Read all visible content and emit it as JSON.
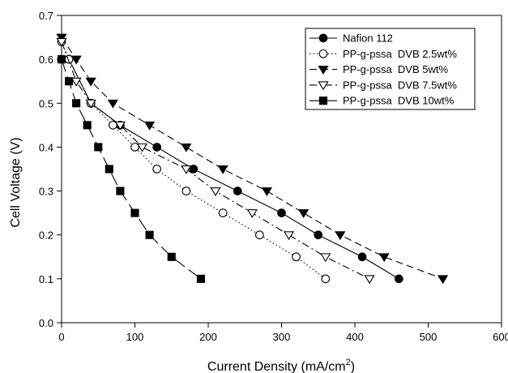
{
  "chart_data": {
    "type": "line",
    "xlabel": "Current Density (mA/cm",
    "xlabel_sup": "2",
    "xlabel_tail": ")",
    "ylabel": "Cell Voltage (V)",
    "xlim": [
      0,
      600
    ],
    "ylim": [
      0.0,
      0.7
    ],
    "x_ticks": [
      0,
      100,
      200,
      300,
      400,
      500,
      600
    ],
    "x_tick_labels": [
      "0",
      "100",
      "200",
      "300",
      "400",
      "500",
      "600"
    ],
    "y_ticks": [
      0.0,
      0.1,
      0.2,
      0.3,
      0.4,
      0.5,
      0.6,
      0.7
    ],
    "y_tick_labels": [
      "0.0",
      "0.1",
      "0.2",
      "0.3",
      "0.4",
      "0.5",
      "0.6",
      "0.7"
    ],
    "grid": false,
    "legend_position": "top-right",
    "series": [
      {
        "name": "Nafion 112",
        "marker": "circle-filled",
        "line_style": "solid",
        "color": "#000000",
        "x": [
          0,
          10,
          40,
          80,
          130,
          180,
          240,
          300,
          350,
          410,
          460
        ],
        "y": [
          0.6,
          0.6,
          0.5,
          0.45,
          0.4,
          0.35,
          0.3,
          0.25,
          0.2,
          0.15,
          0.1
        ]
      },
      {
        "name": "PP-g-pssa  DVB 2.5wt%",
        "marker": "circle-open",
        "line_style": "dotted",
        "color": "#000000",
        "x": [
          0,
          10,
          40,
          70,
          100,
          130,
          170,
          220,
          270,
          320,
          360
        ],
        "y": [
          0.64,
          0.6,
          0.5,
          0.45,
          0.4,
          0.35,
          0.3,
          0.25,
          0.2,
          0.15,
          0.1
        ]
      },
      {
        "name": "PP-g-pssa  DVB 5wt%",
        "marker": "triangle-down-filled",
        "line_style": "dashed",
        "color": "#000000",
        "x": [
          0,
          20,
          40,
          70,
          120,
          170,
          220,
          280,
          330,
          380,
          440,
          520
        ],
        "y": [
          0.65,
          0.6,
          0.55,
          0.5,
          0.45,
          0.4,
          0.35,
          0.3,
          0.25,
          0.2,
          0.15,
          0.1
        ]
      },
      {
        "name": "PP-g-pssa  DVB 7.5wt%",
        "marker": "triangle-down-open",
        "line_style": "dashdot",
        "color": "#000000",
        "x": [
          0,
          20,
          40,
          80,
          110,
          170,
          210,
          260,
          310,
          360,
          420
        ],
        "y": [
          0.64,
          0.55,
          0.5,
          0.45,
          0.4,
          0.35,
          0.3,
          0.25,
          0.2,
          0.15,
          0.1
        ]
      },
      {
        "name": "PP-g-pssa  DVB 10wt%",
        "marker": "square-filled",
        "line_style": "longdash",
        "color": "#000000",
        "x": [
          0,
          10,
          20,
          35,
          50,
          65,
          80,
          100,
          120,
          150,
          190
        ],
        "y": [
          0.6,
          0.55,
          0.5,
          0.45,
          0.4,
          0.35,
          0.3,
          0.25,
          0.2,
          0.15,
          0.1
        ]
      }
    ]
  }
}
